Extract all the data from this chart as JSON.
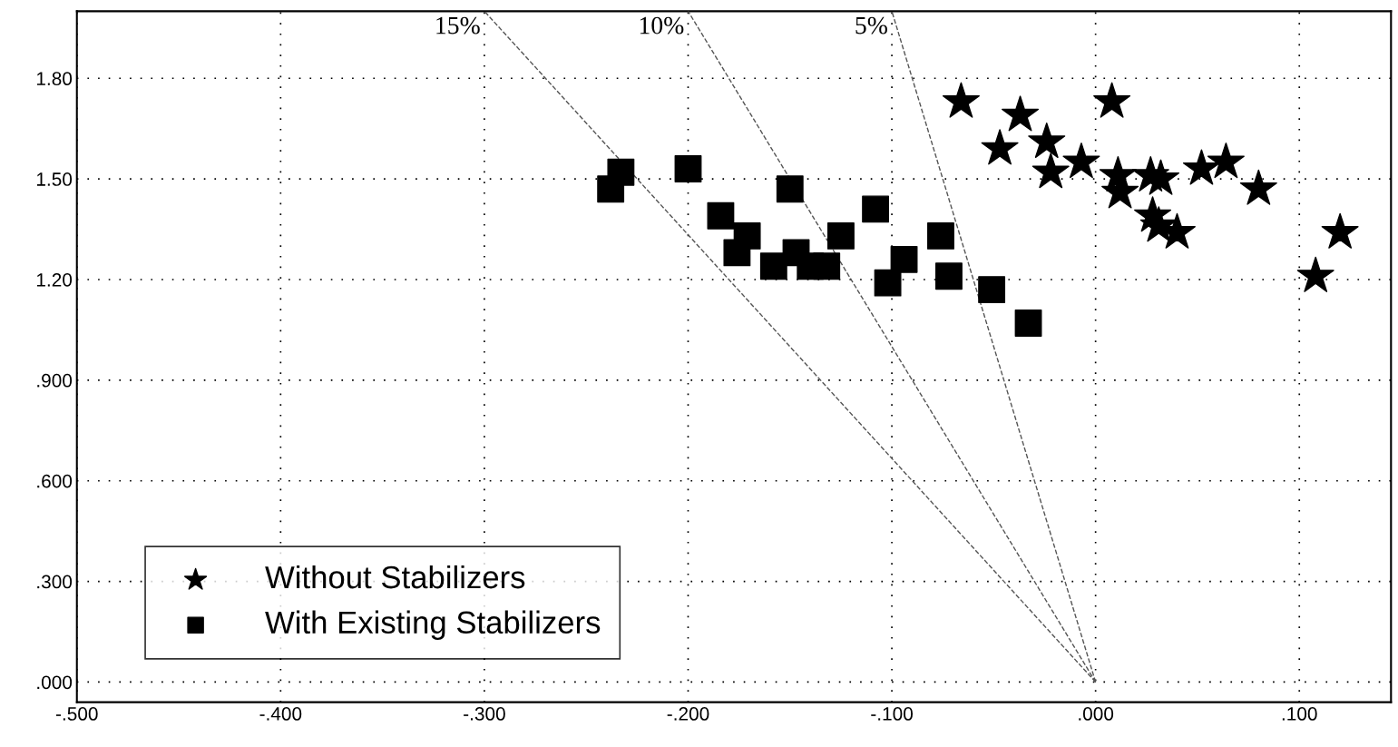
{
  "chart_data": {
    "type": "scatter",
    "xlim": [
      -0.5,
      0.145
    ],
    "ylim": [
      -0.06,
      2.0
    ],
    "xticks": [
      {
        "value": -0.5,
        "label": "-.500"
      },
      {
        "value": -0.4,
        "label": "-.400"
      },
      {
        "value": -0.3,
        "label": "-.300"
      },
      {
        "value": -0.2,
        "label": "-.200"
      },
      {
        "value": -0.1,
        "label": "-.100"
      },
      {
        "value": 0,
        "label": ".000"
      },
      {
        "value": 0.1,
        "label": ".100"
      }
    ],
    "yticks": [
      {
        "value": 0,
        "label": ".000"
      },
      {
        "value": 0.3,
        "label": ".300"
      },
      {
        "value": 0.6,
        "label": ".600"
      },
      {
        "value": 0.9,
        "label": ".900"
      },
      {
        "value": 1.2,
        "label": "1.20"
      },
      {
        "value": 1.5,
        "label": "1.50"
      },
      {
        "value": 1.8,
        "label": "1.80"
      }
    ],
    "grid": true,
    "legend": "bottom left",
    "series": [
      {
        "name": "Without Stabilizers",
        "marker": "star",
        "color": "#000000",
        "x": [
          -0.066,
          0.008,
          -0.037,
          -0.047,
          -0.024,
          -0.022,
          -0.007,
          0.011,
          0.012,
          0.027,
          0.032,
          0.028,
          0.031,
          0.04,
          0.052,
          0.064,
          0.08,
          0.12,
          0.108
        ],
        "values": [
          1.73,
          1.73,
          1.69,
          1.59,
          1.61,
          1.52,
          1.55,
          1.51,
          1.46,
          1.51,
          1.5,
          1.39,
          1.36,
          1.34,
          1.53,
          1.55,
          1.47,
          1.34,
          1.21
        ]
      },
      {
        "name": "With Existing Stabilizers",
        "marker": "square",
        "color": "#000000",
        "x": [
          -0.238,
          -0.233,
          -0.2,
          -0.184,
          -0.171,
          -0.176,
          -0.158,
          -0.15,
          -0.147,
          -0.14,
          -0.132,
          -0.125,
          -0.108,
          -0.102,
          -0.094,
          -0.076,
          -0.072,
          -0.051,
          -0.033
        ],
        "values": [
          1.47,
          1.52,
          1.53,
          1.39,
          1.33,
          1.28,
          1.24,
          1.47,
          1.28,
          1.24,
          1.24,
          1.33,
          1.41,
          1.19,
          1.26,
          1.33,
          1.21,
          1.17,
          1.07
        ]
      },
      {
        "type": "line",
        "line_style": "dashed",
        "color": "#555555",
        "x": [
          0,
          -0.3
        ],
        "values": [
          0,
          2.0
        ]
      },
      {
        "type": "line",
        "line_style": "dashed",
        "color": "#555555",
        "x": [
          0,
          -0.2
        ],
        "values": [
          0,
          2.0
        ]
      },
      {
        "type": "line",
        "line_style": "dashed",
        "color": "#555555",
        "x": [
          0,
          -0.1
        ],
        "values": [
          0,
          2.0
        ]
      }
    ],
    "annotations": [
      {
        "text": "15%",
        "x": -0.3,
        "y": 2.0
      },
      {
        "text": "10%",
        "x": -0.2,
        "y": 2.0
      },
      {
        "text": "5%",
        "x": -0.1,
        "y": 2.0
      }
    ]
  }
}
